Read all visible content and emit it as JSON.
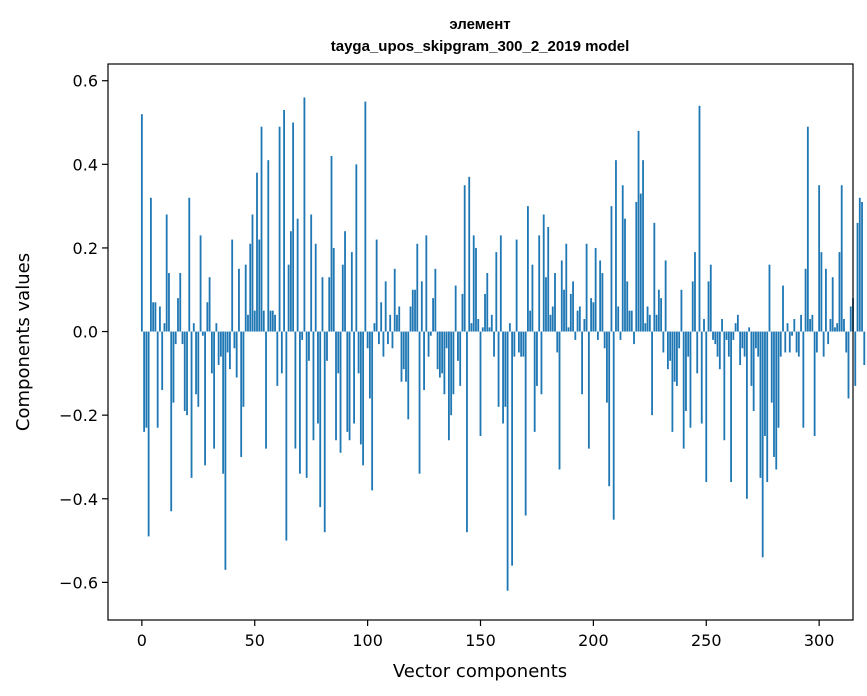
{
  "chart_data": {
    "type": "bar",
    "title_line1": "элемент",
    "title_line2": "tayga_upos_skipgram_300_2_2019 model",
    "xlabel": "Vector components",
    "ylabel": "Components values",
    "xlim": [
      -15,
      315
    ],
    "ylim": [
      -0.69,
      0.64
    ],
    "xticks": [
      0,
      50,
      100,
      150,
      200,
      250,
      300
    ],
    "xtick_labels": [
      "0",
      "50",
      "100",
      "150",
      "200",
      "250",
      "300"
    ],
    "yticks": [
      -0.6,
      -0.4,
      -0.2,
      0.0,
      0.2,
      0.4,
      0.6
    ],
    "ytick_labels": [
      "−0.6",
      "−0.4",
      "−0.2",
      "0.0",
      "0.2",
      "0.4",
      "0.6"
    ],
    "bar_color": "#1f77b4",
    "grid": false,
    "values": [
      0.52,
      -0.24,
      -0.23,
      -0.49,
      0.32,
      0.07,
      0.07,
      -0.23,
      0.06,
      -0.14,
      0.02,
      0.28,
      0.14,
      -0.43,
      -0.17,
      -0.03,
      0.08,
      0.14,
      -0.03,
      -0.19,
      -0.2,
      0.32,
      -0.35,
      0.02,
      -0.15,
      -0.18,
      0.23,
      -0.01,
      -0.32,
      0.07,
      0.13,
      -0.1,
      -0.28,
      0.02,
      -0.08,
      -0.06,
      -0.34,
      -0.57,
      -0.05,
      -0.09,
      0.22,
      -0.04,
      -0.11,
      0.15,
      -0.3,
      -0.18,
      0.16,
      0.04,
      0.21,
      0.28,
      0.05,
      0.38,
      0.22,
      0.49,
      0.05,
      -0.28,
      0.41,
      0.05,
      0.05,
      0.04,
      -0.13,
      0.49,
      -0.1,
      0.53,
      -0.5,
      0.16,
      0.24,
      0.5,
      -0.28,
      0.27,
      -0.34,
      -0.02,
      0.56,
      -0.35,
      -0.07,
      0.28,
      -0.26,
      0.21,
      -0.22,
      -0.42,
      0.13,
      -0.48,
      -0.07,
      0.13,
      0.42,
      0.2,
      -0.26,
      -0.1,
      -0.29,
      0.16,
      0.24,
      -0.24,
      -0.26,
      0.19,
      -0.22,
      0.4,
      -0.1,
      -0.27,
      -0.32,
      0.55,
      -0.04,
      -0.16,
      -0.38,
      0.02,
      0.22,
      -0.03,
      0.07,
      -0.06,
      0.12,
      -0.03,
      0.04,
      -0.04,
      0.15,
      0.04,
      0.06,
      -0.12,
      -0.09,
      -0.12,
      -0.21,
      0.06,
      0.1,
      0.1,
      0.21,
      -0.34,
      0.12,
      -0.14,
      0.23,
      -0.06,
      -0.01,
      0.08,
      0.15,
      -0.09,
      -0.11,
      -0.1,
      -0.15,
      -0.04,
      -0.26,
      -0.2,
      -0.15,
      0.11,
      -0.07,
      -0.13,
      0.09,
      0.35,
      -0.48,
      0.37,
      0.02,
      0.23,
      0.2,
      0.03,
      -0.25,
      0.01,
      0.09,
      0.14,
      0.01,
      0.04,
      -0.06,
      0.19,
      -0.18,
      0.23,
      -0.22,
      -0.18,
      -0.62,
      0.02,
      -0.56,
      -0.06,
      0.22,
      -0.05,
      -0.06,
      -0.06,
      -0.44,
      0.3,
      0.05,
      0.16,
      -0.24,
      -0.13,
      0.23,
      -0.15,
      0.28,
      0.13,
      0.25,
      0.04,
      0.06,
      0.14,
      -0.05,
      -0.33,
      0.17,
      0.1,
      0.21,
      0.01,
      0.09,
      0.12,
      -0.02,
      0.05,
      0.06,
      -0.15,
      0.03,
      0.21,
      -0.28,
      0.08,
      0.07,
      0.2,
      -0.02,
      0.17,
      0.14,
      -0.04,
      -0.17,
      -0.37,
      0.3,
      -0.45,
      0.41,
      0.06,
      -0.02,
      0.35,
      0.27,
      0.12,
      0.05,
      0.05,
      -0.03,
      0.31,
      0.48,
      0.33,
      0.41,
      0.02,
      0.06,
      0.04,
      -0.2,
      0.26,
      0.04,
      0.1,
      0.08,
      -0.05,
      0.17,
      -0.09,
      -0.07,
      -0.24,
      -0.12,
      -0.13,
      -0.04,
      0.1,
      -0.28,
      -0.19,
      -0.06,
      -0.23,
      0.12,
      0.19,
      -0.1,
      0.54,
      -0.22,
      0.03,
      -0.36,
      0.12,
      0.16,
      -0.02,
      -0.03,
      -0.06,
      -0.09,
      0.03,
      -0.26,
      -0.02,
      -0.06,
      -0.36,
      -0.02,
      0.02,
      0.04,
      -0.08,
      -0.04,
      -0.06,
      -0.4,
      0.01,
      -0.13,
      -0.19,
      -0.04,
      -0.06,
      -0.35,
      -0.54,
      -0.25,
      -0.36,
      0.16,
      -0.17,
      -0.3,
      -0.33,
      -0.23,
      -0.06,
      0.11,
      -0.05,
      0.02,
      -0.05,
      -0.01,
      0.03,
      -0.05,
      -0.06,
      0.04,
      -0.23,
      0.15,
      0.49,
      0.03,
      0.04,
      -0.25,
      -0.05,
      0.35,
      0.19,
      -0.06,
      0.15,
      -0.03,
      0.03,
      0.13,
      0.01,
      0.02,
      0.19,
      0.35,
      0.03,
      -0.05,
      -0.16,
      0.06,
      0.08,
      -0.13,
      0.26,
      0.32,
      0.31,
      -0.08
    ]
  }
}
